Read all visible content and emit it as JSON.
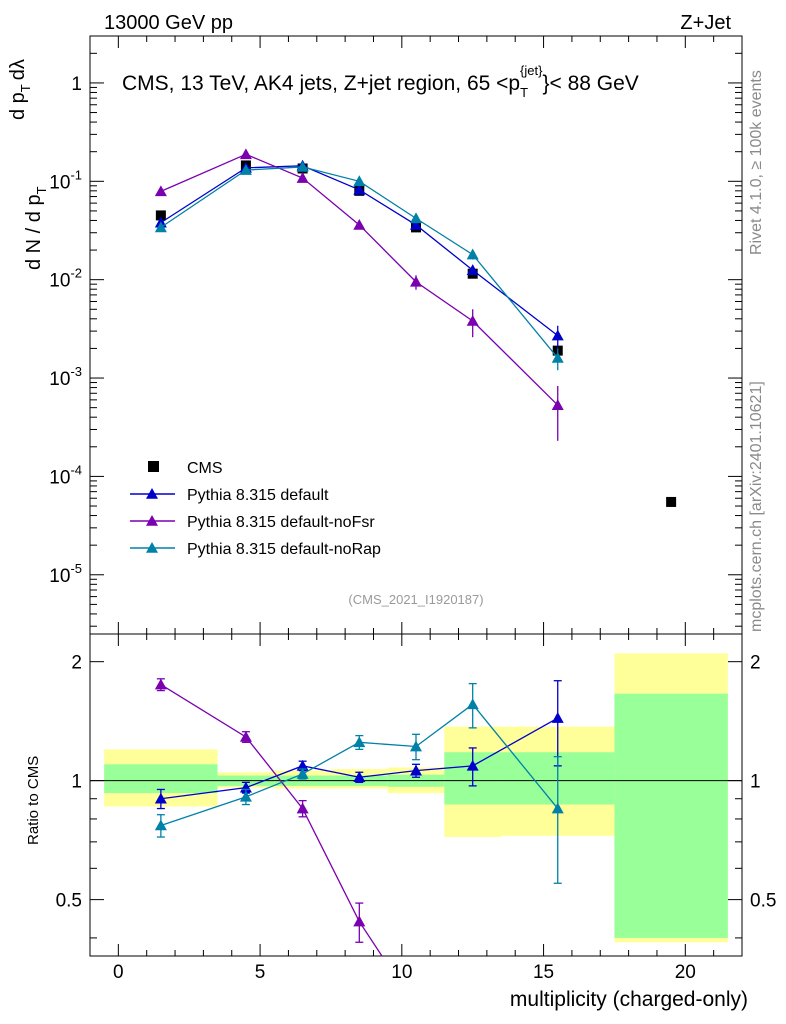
{
  "header": {
    "energy_label": "13000 GeV pp",
    "process_label": "Z+Jet",
    "plot_title": "CMS, 13 TeV, AK4 jets, Z+jet region, 65 <p_T^{jet}< 88 GeV",
    "analysis_id": "(CMS_2021_I1920187)",
    "side_label_top": "Rivet 4.1.0, ≥ 100k events",
    "side_label_bottom": "mcplots.cern.ch [arXiv:2401.10621]"
  },
  "colors": {
    "cms": "#000000",
    "default": "#0000cc",
    "noFsr": "#7a00b0",
    "noRap": "#0081a8",
    "band_yellow": "#ffff99",
    "band_green": "#99ff99"
  },
  "chart_data": [
    {
      "type": "scatter",
      "panel": "main",
      "yscale": "log",
      "ylabel": "1/dN/dp_T  d²N/dp_T dλ",
      "xlim": [
        -1,
        22
      ],
      "ylim": [
        2.5e-06,
        3
      ],
      "y_tick_labels": [
        "10^-5",
        "10^-4",
        "10^-3",
        "10^-2",
        "10^-1",
        "1"
      ],
      "legend": [
        "CMS",
        "Pythia 8.315 default",
        "Pythia 8.315 default-noFsr",
        "Pythia 8.315 default-noRap"
      ],
      "legend_position": "lower-left",
      "series": [
        {
          "name": "CMS",
          "marker": "square",
          "x": [
            1.5,
            4.5,
            6.5,
            8.5,
            10.5,
            12.5,
            15.5,
            19.5
          ],
          "y": [
            0.045,
            0.145,
            0.135,
            0.08,
            0.034,
            0.0115,
            0.0019,
            5.5e-05
          ]
        },
        {
          "name": "Pythia 8.315 default",
          "marker": "triangle",
          "color_key": "default",
          "x": [
            1.5,
            4.5,
            6.5,
            8.5,
            10.5,
            12.5,
            15.5
          ],
          "y": [
            0.038,
            0.137,
            0.144,
            0.082,
            0.036,
            0.0125,
            0.0027
          ],
          "err": [
            0.001,
            0.002,
            0.002,
            0.002,
            0.001,
            0.0006,
            0.0007
          ]
        },
        {
          "name": "Pythia 8.315 default-noFsr",
          "marker": "triangle",
          "color_key": "noFsr",
          "x": [
            1.5,
            4.5,
            6.5,
            8.5,
            10.5,
            12.5,
            15.5
          ],
          "y": [
            0.079,
            0.188,
            0.108,
            0.036,
            0.0095,
            0.0038,
            0.00053
          ],
          "err": [
            0.002,
            0.003,
            0.002,
            0.001,
            0.0016,
            0.0012,
            0.0003
          ]
        },
        {
          "name": "Pythia 8.315 default-noRap",
          "marker": "triangle",
          "color_key": "noRap",
          "x": [
            1.5,
            4.5,
            6.5,
            8.5,
            10.5,
            12.5,
            15.5
          ],
          "y": [
            0.034,
            0.13,
            0.14,
            0.1,
            0.042,
            0.018,
            0.0016
          ],
          "err": [
            0.001,
            0.002,
            0.002,
            0.002,
            0.0015,
            0.002,
            0.0004
          ]
        }
      ]
    },
    {
      "type": "line",
      "panel": "ratio",
      "xlabel": "multiplicity (charged-only)",
      "ylabel": "Ratio to CMS",
      "xlim": [
        -1,
        22
      ],
      "ylim": [
        0.36,
        2.35
      ],
      "x_tick_labels": [
        "0",
        "5",
        "10",
        "15",
        "20"
      ],
      "y_tick_labels": [
        "0.5",
        "1",
        "2"
      ],
      "uncertainty_bands": {
        "bins": [
          [
            -0.5,
            3.5
          ],
          [
            3.5,
            5.5
          ],
          [
            5.5,
            7.5
          ],
          [
            7.5,
            9.5
          ],
          [
            9.5,
            11.5
          ],
          [
            11.5,
            13.5
          ],
          [
            13.5,
            17.5
          ],
          [
            17.5,
            21.5
          ]
        ],
        "stat_low": [
          0.93,
          0.97,
          0.97,
          0.97,
          0.965,
          0.87,
          0.87,
          0.4
        ],
        "stat_high": [
          1.1,
          1.03,
          1.03,
          1.03,
          1.035,
          1.18,
          1.18,
          1.66
        ],
        "total_low": [
          0.86,
          0.96,
          0.955,
          0.955,
          0.93,
          0.72,
          0.725,
          0.39
        ],
        "total_high": [
          1.2,
          1.05,
          1.06,
          1.07,
          1.08,
          1.37,
          1.37,
          2.1
        ]
      },
      "series": [
        {
          "name": "Pythia 8.315 default",
          "color_key": "default",
          "x": [
            1.5,
            4.5,
            6.5,
            8.5,
            10.5,
            12.5,
            15.5
          ],
          "y": [
            0.9,
            0.96,
            1.09,
            1.02,
            1.06,
            1.09,
            1.44
          ],
          "err": [
            0.05,
            0.03,
            0.03,
            0.03,
            0.04,
            0.12,
            0.35
          ]
        },
        {
          "name": "Pythia 8.315 default-noFsr",
          "color_key": "noFsr",
          "x": [
            1.5,
            4.5,
            6.5,
            8.5,
            9.3
          ],
          "y": [
            1.75,
            1.29,
            0.85,
            0.44,
            0.35
          ],
          "err": [
            0.06,
            0.04,
            0.04,
            0.05,
            0
          ]
        },
        {
          "name": "Pythia 8.315 default-noRap",
          "color_key": "noRap",
          "x": [
            1.5,
            4.5,
            6.5,
            8.5,
            10.5,
            12.5,
            15.5
          ],
          "y": [
            0.77,
            0.91,
            1.04,
            1.25,
            1.22,
            1.56,
            0.85
          ],
          "err": [
            0.05,
            0.04,
            0.03,
            0.05,
            0.09,
            0.2,
            0.3
          ]
        }
      ]
    }
  ]
}
